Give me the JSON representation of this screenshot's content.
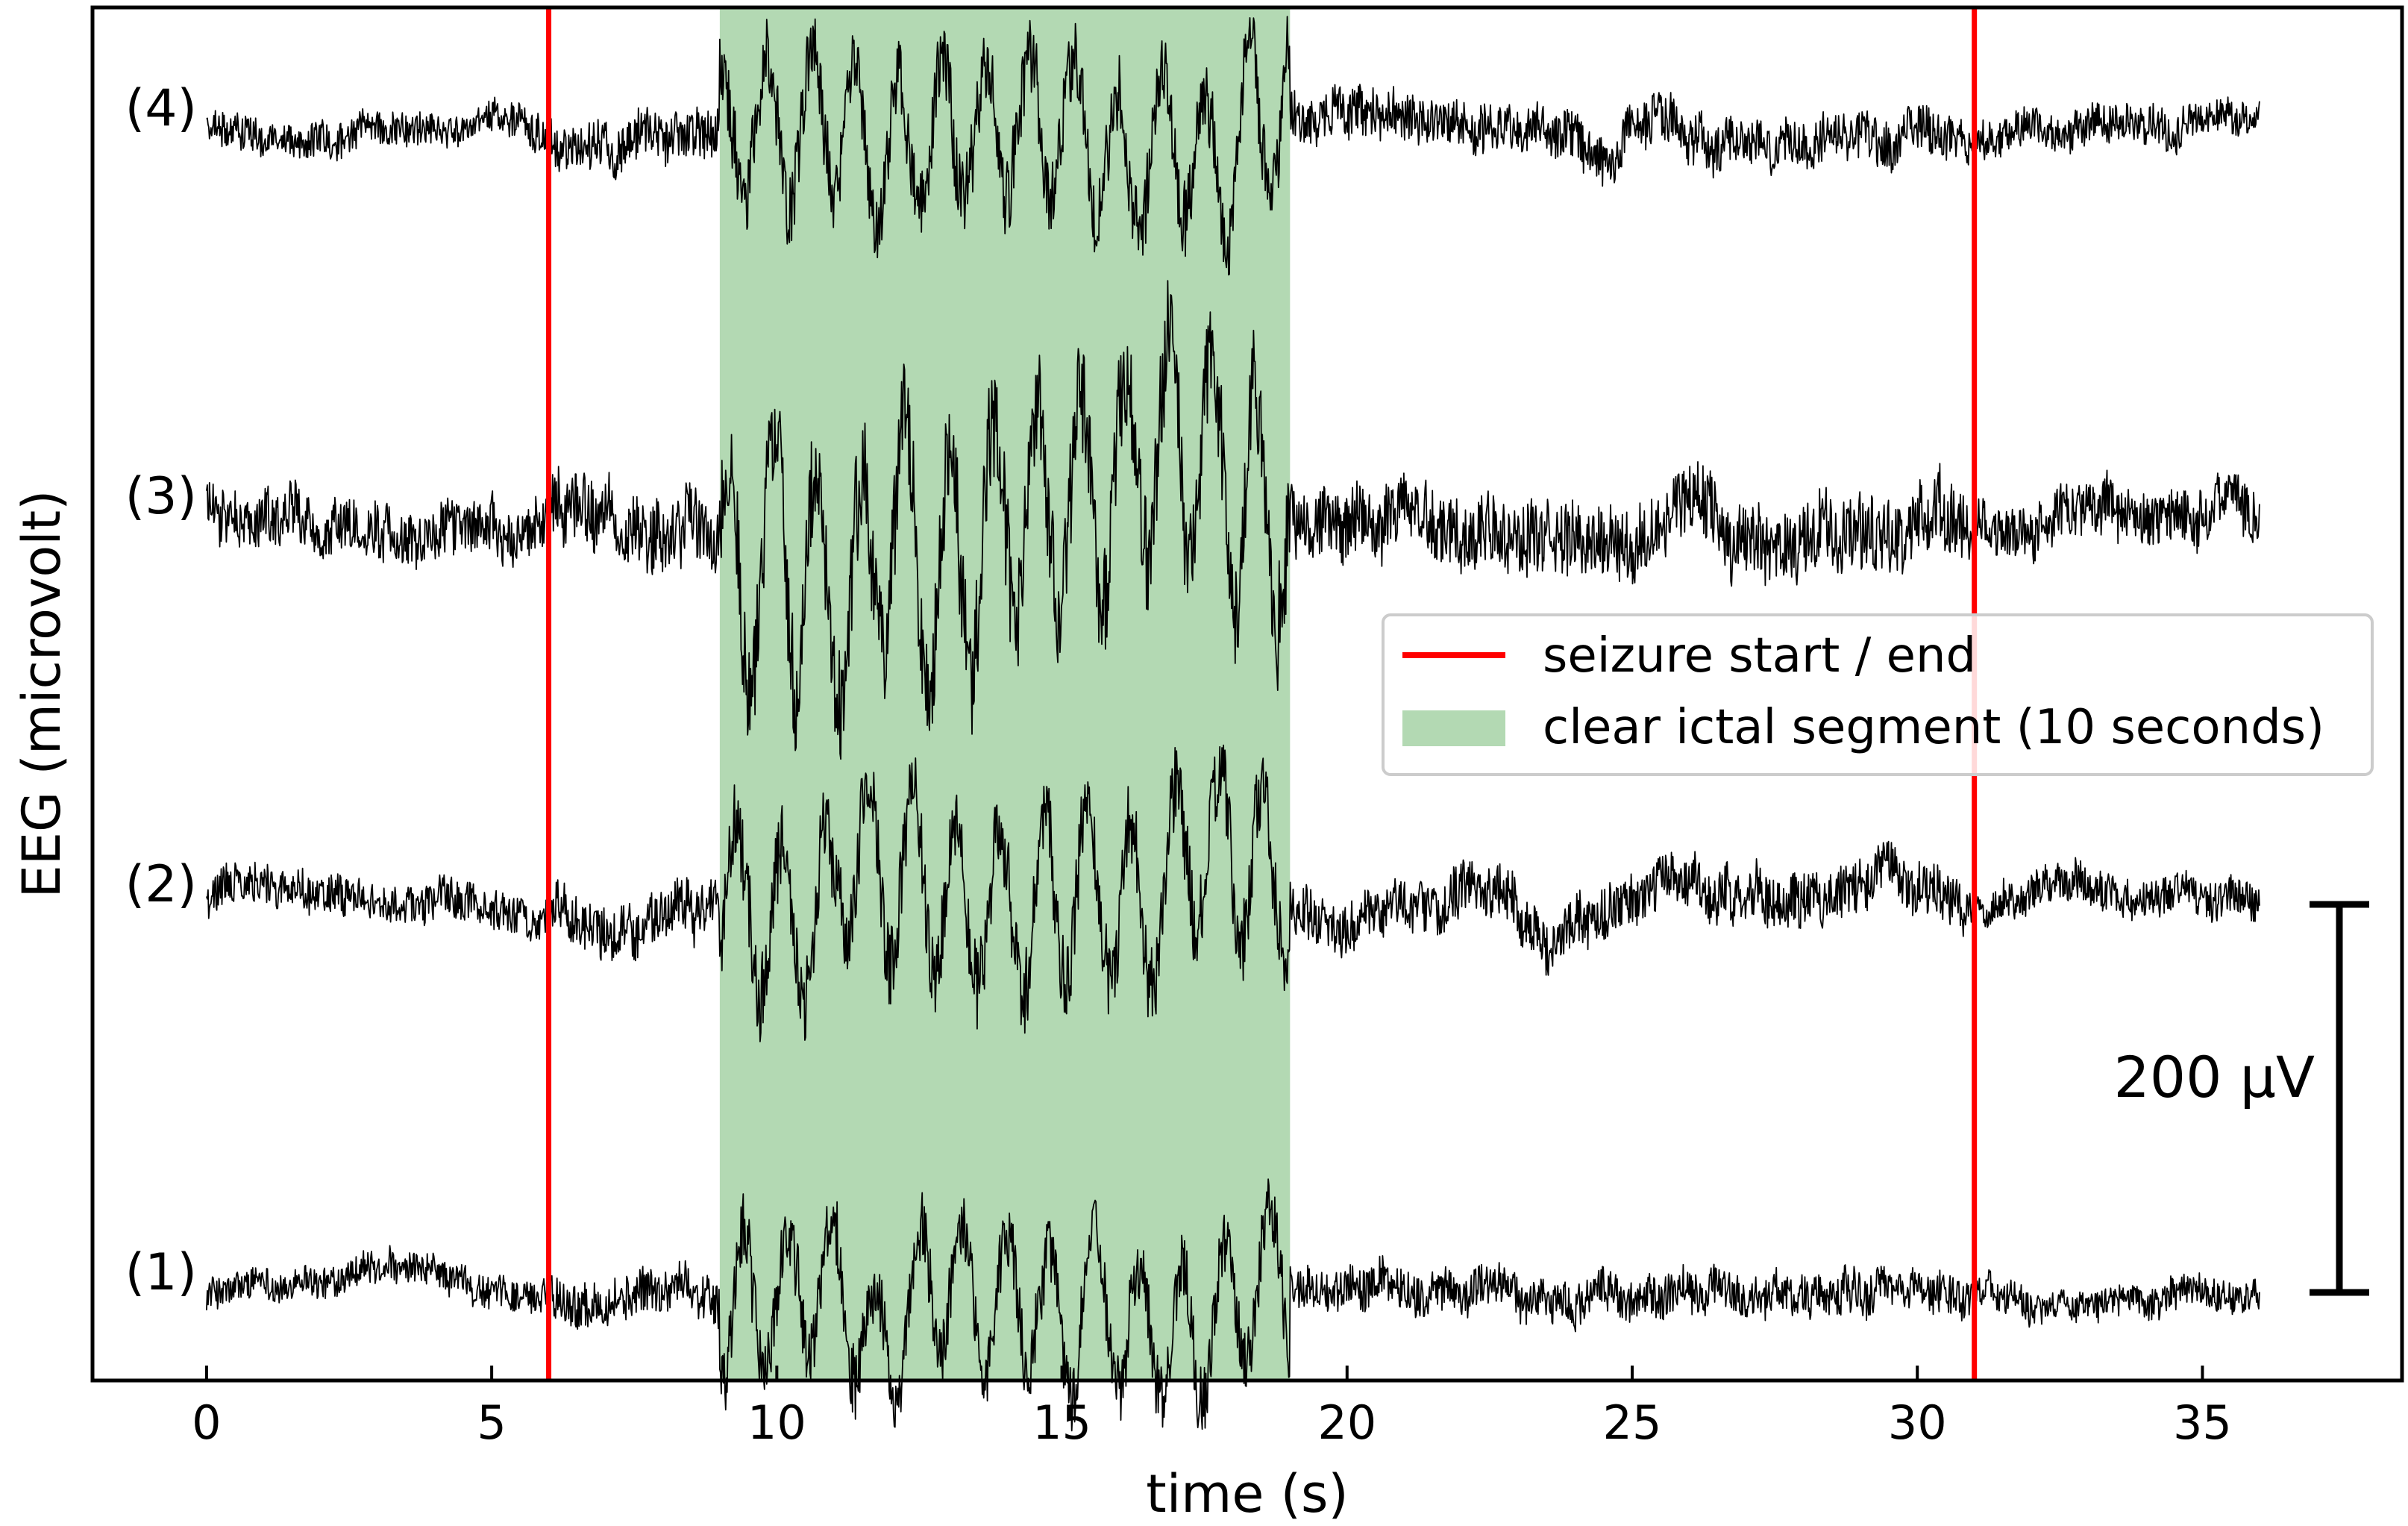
{
  "chart_data": {
    "type": "line",
    "xlabel": "time (s)",
    "ylabel": "EEG (microvolt)",
    "xlim": [
      -2,
      38.5
    ],
    "xticks": [
      0,
      5,
      10,
      15,
      20,
      25,
      30,
      35
    ],
    "xtick_labels": [
      "0",
      "5",
      "10",
      "15",
      "20",
      "25",
      "30",
      "35"
    ],
    "grid": false,
    "channel_duration_s": 36,
    "channels": [
      {
        "label": "(1)",
        "amplitude_uv": 18
      },
      {
        "label": "(2)",
        "amplitude_uv": 22
      },
      {
        "label": "(3)",
        "amplitude_uv": 30
      },
      {
        "label": "(4)",
        "amplitude_uv": 20
      }
    ],
    "seizure_markers_s": [
      6,
      31
    ],
    "ictal_segment_s": [
      9,
      19
    ],
    "legend": {
      "placement": "center-right",
      "items": [
        {
          "label": "seizure start / end",
          "kind": "line",
          "color": "#ff0000"
        },
        {
          "label": "clear ictal segment (10 seconds)",
          "kind": "patch",
          "color": "#b3d9b3"
        }
      ]
    },
    "scale_bar": {
      "label": "200 μV",
      "value_uv": 200
    },
    "colors": {
      "trace": "#000000",
      "marker": "#ff0000",
      "segment": "#b3d9b3",
      "frame": "#000000"
    }
  }
}
